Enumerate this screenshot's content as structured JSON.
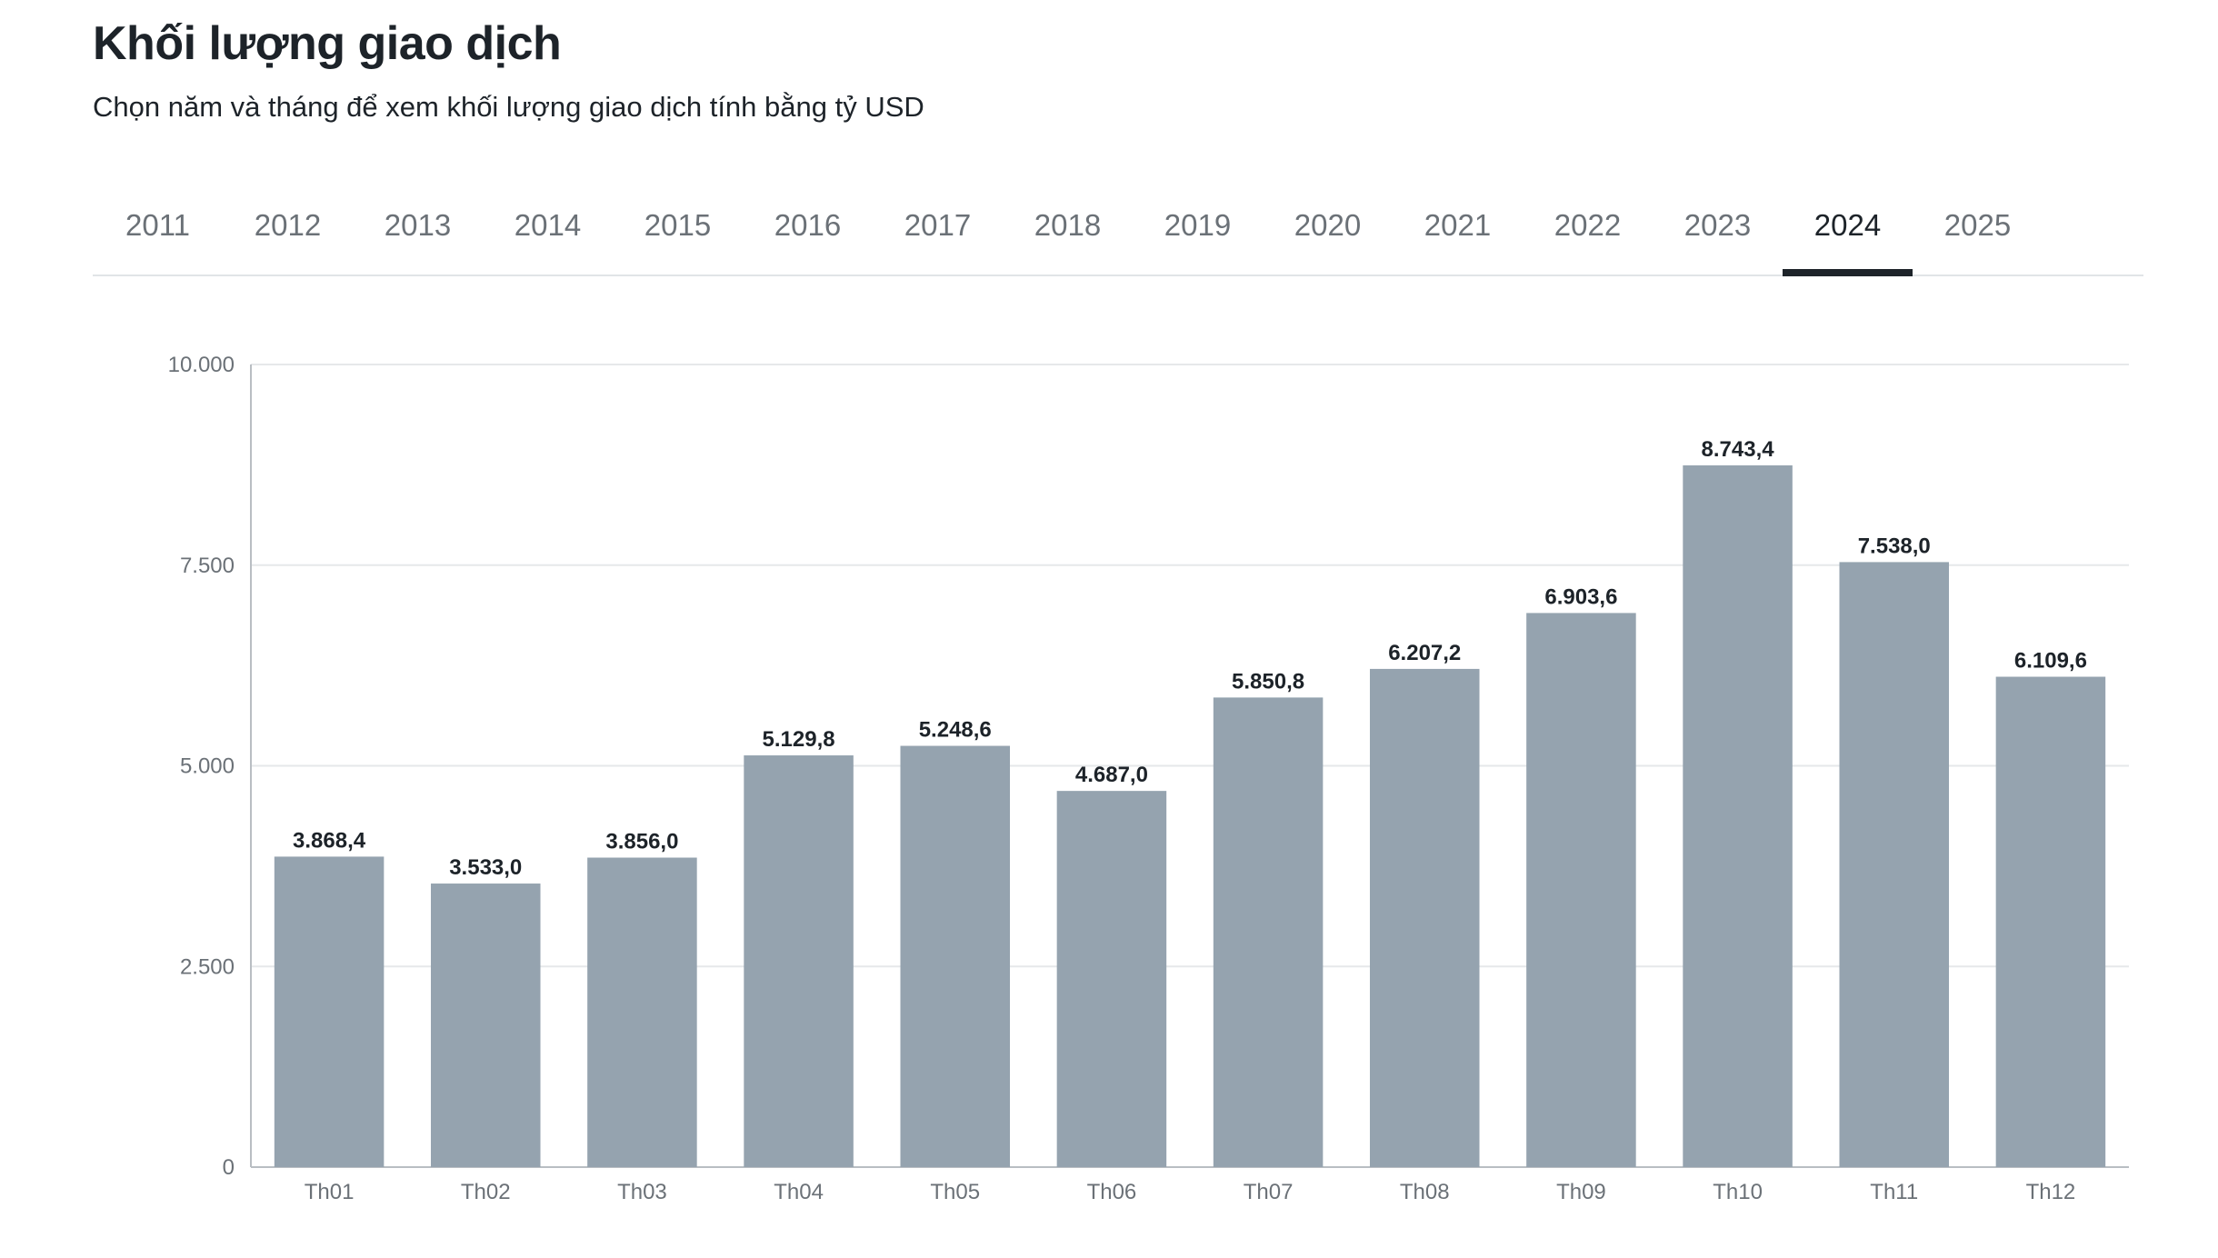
{
  "header": {
    "title": "Khối lượng giao dịch",
    "subtitle": "Chọn năm và tháng để xem khối lượng giao dịch tính bằng tỷ USD"
  },
  "year_tabs": {
    "items": [
      "2011",
      "2012",
      "2013",
      "2014",
      "2015",
      "2016",
      "2017",
      "2018",
      "2019",
      "2020",
      "2021",
      "2022",
      "2023",
      "2024",
      "2025"
    ],
    "selected": "2024"
  },
  "colors": {
    "bar": "#95a3af",
    "grid": "#e6e8ea",
    "axis": "#b9bec3",
    "active_tab": "#1d2329"
  },
  "chart_data": {
    "type": "bar",
    "categories": [
      "Th01",
      "Th02",
      "Th03",
      "Th04",
      "Th05",
      "Th06",
      "Th07",
      "Th08",
      "Th09",
      "Th10",
      "Th11",
      "Th12"
    ],
    "values": [
      3868.4,
      3533.0,
      3856.0,
      5129.8,
      5248.6,
      4687.0,
      5850.8,
      6207.2,
      6903.6,
      8743.4,
      7538.0,
      6109.6
    ],
    "value_labels": [
      "3.868,4",
      "3.533,0",
      "3.856,0",
      "5.129,8",
      "5.248,6",
      "4.687,0",
      "5.850,8",
      "6.207,2",
      "6.903,6",
      "8.743,4",
      "7.538,0",
      "6.109,6"
    ],
    "yticks": [
      0,
      2500,
      5000,
      7500,
      10000
    ],
    "ytick_labels": [
      "0",
      "2.500",
      "5.000",
      "7.500",
      "10.000"
    ],
    "ylim": [
      0,
      10000
    ],
    "grid": true
  }
}
